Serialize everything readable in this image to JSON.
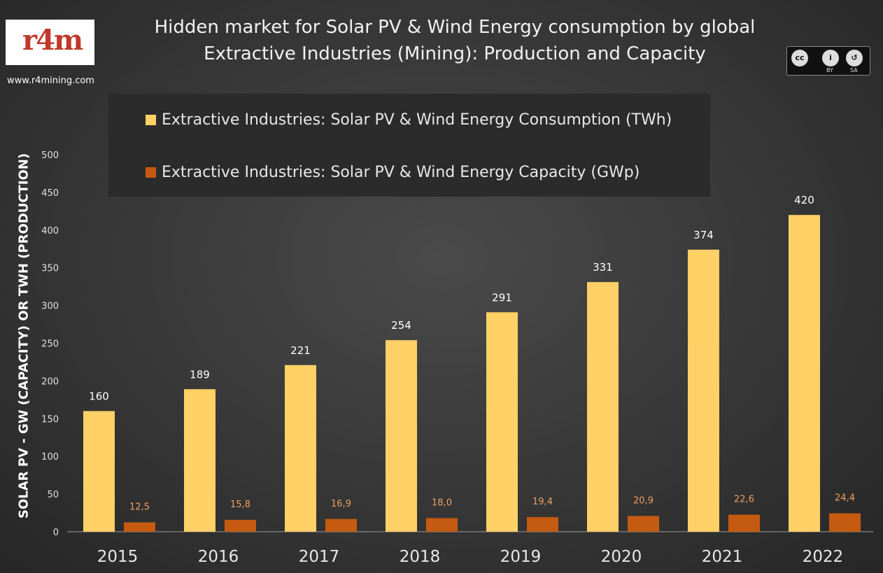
{
  "header": {
    "title_line1": "Hidden market for Solar PV & Wind Energy consumption by global",
    "title_line2": "Extractive Industries (Mining): Production and Capacity",
    "website": "www.r4mining.com",
    "logo_text": "r4m",
    "license": {
      "cc": "cc",
      "by_label": "BY",
      "sa_label": "SA"
    }
  },
  "colors": {
    "consumption": "#ffd166",
    "capacity": "#c55a11"
  },
  "chart_data": {
    "type": "bar",
    "title": "Hidden market for Solar PV & Wind Energy consumption by global Extractive Industries (Mining): Production and Capacity",
    "xlabel": "",
    "ylabel": "SOLAR PV - GW (CAPACITY)  OR TWH (PRODUCTION)",
    "ylim": [
      0,
      500
    ],
    "yticks": [
      "0",
      "50",
      "100",
      "150",
      "200",
      "250",
      "300",
      "350",
      "400",
      "450",
      "500"
    ],
    "categories": [
      "2015",
      "2016",
      "2017",
      "2018",
      "2019",
      "2020",
      "2021",
      "2022"
    ],
    "legend_position": "top",
    "series": [
      {
        "name": "Extractive Industries: Solar PV & Wind Energy Consumption (TWh)",
        "values": [
          160,
          189,
          221,
          254,
          291,
          331,
          374,
          420
        ],
        "labels": [
          "160",
          "189",
          "221",
          "254",
          "291",
          "331",
          "374",
          "420"
        ]
      },
      {
        "name": "Extractive Industries: Solar PV & Wind Energy Capacity (GWp)",
        "values": [
          12.5,
          15.8,
          16.9,
          18.0,
          19.4,
          20.9,
          22.6,
          24.4
        ],
        "labels": [
          "12,5",
          "15,8",
          "16,9",
          "18,0",
          "19,4",
          "20,9",
          "22,6",
          "24,4"
        ]
      }
    ]
  }
}
